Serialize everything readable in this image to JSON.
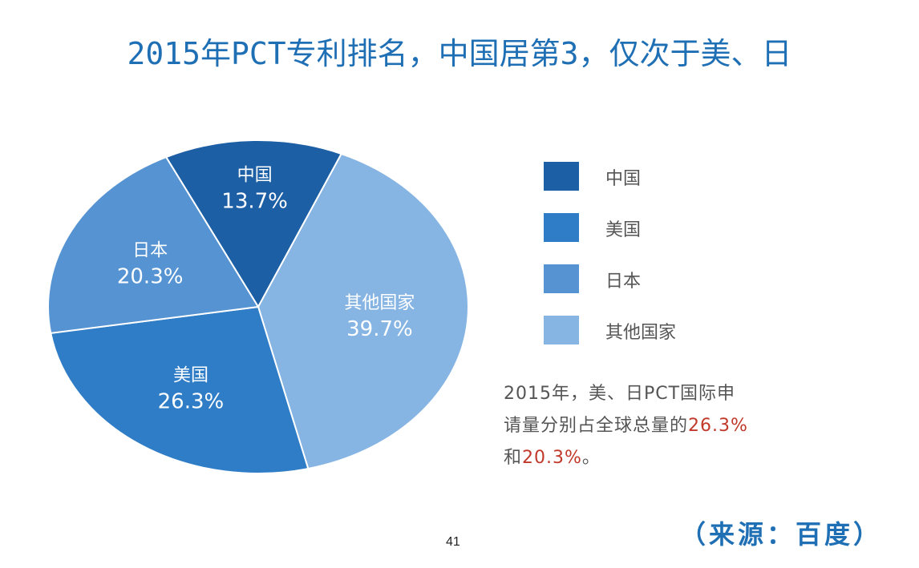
{
  "slide": {
    "title": "2015年PCT专利排名，中国居第3，仅次于美、日",
    "note": {
      "line1": "2015年，美、日PCT国际申",
      "line2_prefix": "请量分别占全球总量的",
      "line2_highlight": "26.3%",
      "line3_prefix": "和",
      "line3_highlight": "20.3%",
      "line3_suffix": "。"
    },
    "source": "（来源：百度）",
    "page_number": "41"
  },
  "colors": {
    "china": "#1d5fa5",
    "usa": "#2f7cc7",
    "japan": "#5593d2",
    "other": "#86b4e3",
    "title": "#1f6fb5",
    "highlight": "#c0392b"
  },
  "chart_data": {
    "type": "pie",
    "title": "",
    "legend_position": "right",
    "slices": [
      {
        "name": "中国",
        "value": 13.7,
        "label": "13.7%",
        "color": "#1d5fa5"
      },
      {
        "name": "其他国家",
        "value": 39.7,
        "label": "39.7%",
        "color": "#86b4e3"
      },
      {
        "name": "美国",
        "value": 26.3,
        "label": "26.3%",
        "color": "#2f7cc7"
      },
      {
        "name": "日本",
        "value": 20.3,
        "label": "20.3%",
        "color": "#5593d2"
      }
    ],
    "legend": [
      {
        "name": "中国",
        "color": "#1d5fa5"
      },
      {
        "name": "美国",
        "color": "#2f7cc7"
      },
      {
        "name": "日本",
        "color": "#5593d2"
      },
      {
        "name": "其他国家",
        "color": "#86b4e3"
      }
    ]
  }
}
